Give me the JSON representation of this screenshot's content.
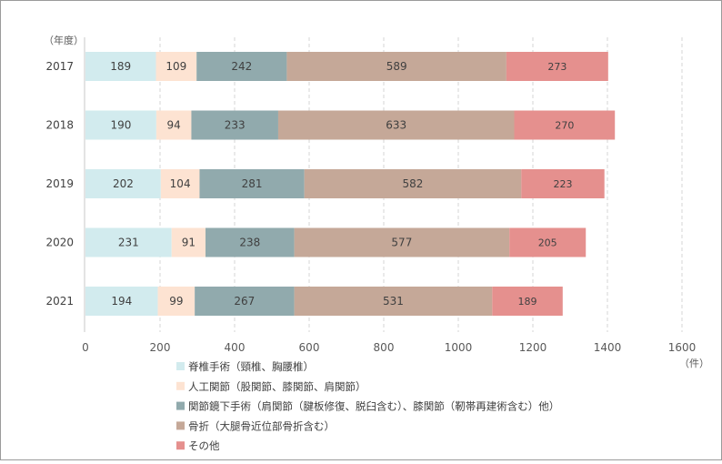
{
  "chart_data": {
    "type": "bar",
    "orientation": "horizontal",
    "stacked": true,
    "categories": [
      "2017",
      "2018",
      "2019",
      "2020",
      "2021"
    ],
    "series": [
      {
        "name": "脊椎手術（頸椎、胸腰椎）",
        "color": "#d2ebee",
        "values": [
          189,
          190,
          202,
          231,
          194
        ]
      },
      {
        "name": "人工関節（股関節、膝関節、肩関節）",
        "color": "#fde3d2",
        "values": [
          109,
          94,
          104,
          91,
          99
        ]
      },
      {
        "name": "関節鏡下手術（肩関節（腱板修復、脱臼含む）、膝関節（靭帯再建術含む）他）",
        "color": "#91aaad",
        "values": [
          242,
          233,
          281,
          238,
          267
        ]
      },
      {
        "name": "骨折（大腿骨近位部骨折含む）",
        "color": "#c5a898",
        "values": [
          589,
          633,
          582,
          577,
          531
        ]
      },
      {
        "name": "その他",
        "color": "#e5908e",
        "values": [
          273,
          270,
          223,
          205,
          189
        ]
      }
    ],
    "xlim": [
      0,
      1600
    ],
    "xticks": [
      "0",
      "200",
      "400",
      "600",
      "800",
      "1000",
      "1200",
      "1400",
      "1600"
    ],
    "category_axis_unit": "（年度）",
    "value_axis_unit": "（件）",
    "grid": "vertical dashed",
    "legend_position": "bottom-left"
  }
}
